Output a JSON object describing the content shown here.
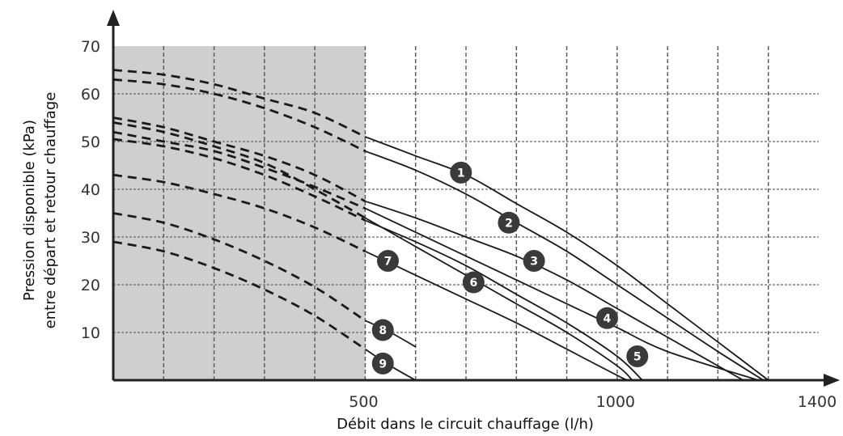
{
  "chart_data": {
    "type": "line",
    "xlabel": "Débit dans le circuit chauffage (l/h)",
    "ylabel_lines": [
      "Pression disponible (kPa)",
      "entre départ et retour chauffage"
    ],
    "xlim": [
      0,
      1400
    ],
    "ylim": [
      0,
      70
    ],
    "x_ticks": [
      500,
      1000,
      1400
    ],
    "y_ticks": [
      10,
      20,
      30,
      40,
      50,
      60,
      70
    ],
    "x_grid_step": 100,
    "y_grid_step": 10,
    "shaded_region": {
      "x": [
        0,
        500
      ],
      "y": [
        0,
        70
      ]
    },
    "note": "",
    "series": [
      {
        "name": "1",
        "dashed_points": [
          [
            0,
            65
          ],
          [
            100,
            64
          ],
          [
            200,
            62
          ],
          [
            300,
            59
          ],
          [
            400,
            56
          ],
          [
            500,
            51
          ]
        ],
        "solid_points": [
          [
            500,
            51
          ],
          [
            600,
            47
          ],
          [
            700,
            43
          ],
          [
            800,
            37
          ],
          [
            900,
            31
          ],
          [
            1000,
            24
          ],
          [
            1100,
            16
          ],
          [
            1200,
            8
          ],
          [
            1300,
            0
          ]
        ]
      },
      {
        "name": "2",
        "dashed_points": [
          [
            0,
            63
          ],
          [
            100,
            62
          ],
          [
            200,
            60
          ],
          [
            300,
            57
          ],
          [
            400,
            53
          ],
          [
            500,
            48
          ]
        ],
        "solid_points": [
          [
            500,
            48
          ],
          [
            600,
            44
          ],
          [
            700,
            39
          ],
          [
            800,
            33
          ],
          [
            900,
            27
          ],
          [
            1000,
            20
          ],
          [
            1100,
            13
          ],
          [
            1200,
            6
          ],
          [
            1290,
            0
          ]
        ]
      },
      {
        "name": "3",
        "dashed_points": [
          [
            0,
            55
          ],
          [
            100,
            53
          ],
          [
            200,
            50
          ],
          [
            300,
            47
          ],
          [
            400,
            43
          ],
          [
            500,
            37.5
          ]
        ],
        "solid_points": [
          [
            500,
            37.5
          ],
          [
            600,
            34
          ],
          [
            700,
            30
          ],
          [
            800,
            26
          ],
          [
            900,
            21
          ],
          [
            1000,
            15
          ],
          [
            1100,
            9
          ],
          [
            1250,
            0
          ]
        ]
      },
      {
        "name": "4",
        "dashed_points": [
          [
            0,
            52
          ],
          [
            100,
            50
          ],
          [
            200,
            48
          ],
          [
            300,
            44.5
          ],
          [
            400,
            40.5
          ],
          [
            500,
            36
          ]
        ],
        "solid_points": [
          [
            500,
            36
          ],
          [
            600,
            31
          ],
          [
            700,
            26
          ],
          [
            800,
            21
          ],
          [
            900,
            16
          ],
          [
            1000,
            11
          ],
          [
            1100,
            6
          ],
          [
            1280,
            0
          ]
        ]
      },
      {
        "name": "5",
        "dashed_points": [
          [
            0,
            50.5
          ],
          [
            100,
            49
          ],
          [
            200,
            46.5
          ],
          [
            300,
            43
          ],
          [
            400,
            38.5
          ],
          [
            500,
            33.5
          ]
        ],
        "solid_points": [
          [
            500,
            33.5
          ],
          [
            600,
            29
          ],
          [
            700,
            24
          ],
          [
            800,
            18
          ],
          [
            900,
            12
          ],
          [
            1000,
            5
          ],
          [
            1050,
            0
          ]
        ]
      },
      {
        "name": "6",
        "dashed_points": [
          [
            0,
            54
          ],
          [
            100,
            52
          ],
          [
            200,
            49
          ],
          [
            300,
            45.5
          ],
          [
            400,
            40
          ],
          [
            500,
            34
          ]
        ],
        "solid_points": [
          [
            500,
            34
          ],
          [
            600,
            28
          ],
          [
            700,
            22
          ],
          [
            800,
            16
          ],
          [
            900,
            10
          ],
          [
            1000,
            3
          ],
          [
            1030,
            0
          ]
        ]
      },
      {
        "name": "7",
        "dashed_points": [
          [
            0,
            43
          ],
          [
            100,
            41.5
          ],
          [
            200,
            39
          ],
          [
            300,
            36
          ],
          [
            400,
            32
          ],
          [
            500,
            27
          ]
        ],
        "solid_points": [
          [
            500,
            27
          ],
          [
            600,
            22
          ],
          [
            700,
            17
          ],
          [
            800,
            12
          ],
          [
            900,
            6.5
          ],
          [
            1000,
            1
          ],
          [
            1020,
            0
          ]
        ]
      },
      {
        "name": "8",
        "dashed_points": [
          [
            0,
            35
          ],
          [
            100,
            33
          ],
          [
            200,
            29.5
          ],
          [
            300,
            25
          ],
          [
            400,
            19.5
          ],
          [
            500,
            12.5
          ]
        ],
        "solid_points": [
          [
            500,
            12.5
          ],
          [
            550,
            10
          ],
          [
            600,
            7
          ]
        ]
      },
      {
        "name": "9",
        "dashed_points": [
          [
            0,
            29
          ],
          [
            100,
            27
          ],
          [
            200,
            23.5
          ],
          [
            300,
            19
          ],
          [
            400,
            13.5
          ],
          [
            500,
            6.5
          ]
        ],
        "solid_points": [
          [
            500,
            6.5
          ],
          [
            550,
            3
          ],
          [
            600,
            0
          ]
        ]
      }
    ],
    "markers": [
      {
        "label": "1",
        "x": 690,
        "y": 43.5
      },
      {
        "label": "2",
        "x": 785,
        "y": 33
      },
      {
        "label": "3",
        "x": 835,
        "y": 25
      },
      {
        "label": "4",
        "x": 980,
        "y": 13
      },
      {
        "label": "5",
        "x": 1040,
        "y": 5
      },
      {
        "label": "6",
        "x": 715,
        "y": 20.5
      },
      {
        "label": "7",
        "x": 545,
        "y": 25
      },
      {
        "label": "8",
        "x": 535,
        "y": 10.5
      },
      {
        "label": "9",
        "x": 535,
        "y": 3.5
      }
    ]
  }
}
